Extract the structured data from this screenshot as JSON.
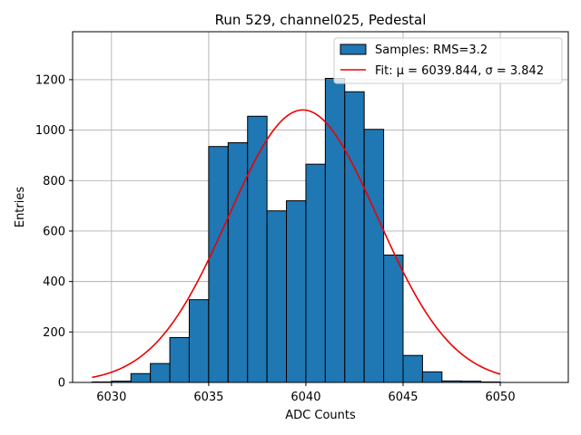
{
  "chart_data": {
    "type": "bar",
    "title": "Run 529, channel025, Pedestal",
    "xlabel": "ADC Counts",
    "ylabel": "Entries",
    "xlim": [
      6028,
      6053.5
    ],
    "ylim": [
      0,
      1390
    ],
    "xticks": [
      6030,
      6035,
      6040,
      6045,
      6050
    ],
    "yticks": [
      0,
      200,
      400,
      600,
      800,
      1000,
      1200
    ],
    "grid": true,
    "bin_edges": [
      6029,
      6030,
      6031,
      6032,
      6033,
      6034,
      6035,
      6036,
      6037,
      6038,
      6039,
      6040,
      6041,
      6042,
      6043,
      6044,
      6045,
      6046,
      6047,
      6048,
      6049,
      6050
    ],
    "values": [
      2,
      5,
      35,
      75,
      178,
      328,
      935,
      950,
      1055,
      680,
      720,
      865,
      1205,
      1152,
      1003,
      505,
      107,
      42,
      6,
      5,
      2
    ],
    "bar_color": "#1f77b4",
    "fit": {
      "type": "gaussian",
      "mu": 6039.844,
      "sigma": 3.842,
      "peak": 1080,
      "range": [
        6029,
        6050
      ],
      "color": "#ee0000"
    },
    "legend": {
      "position": "top-right",
      "entries": [
        {
          "label": "Samples: RMS=3.2",
          "kind": "patch"
        },
        {
          "label": "Fit: μ = 6039.844, σ = 3.842",
          "kind": "line"
        }
      ]
    }
  }
}
